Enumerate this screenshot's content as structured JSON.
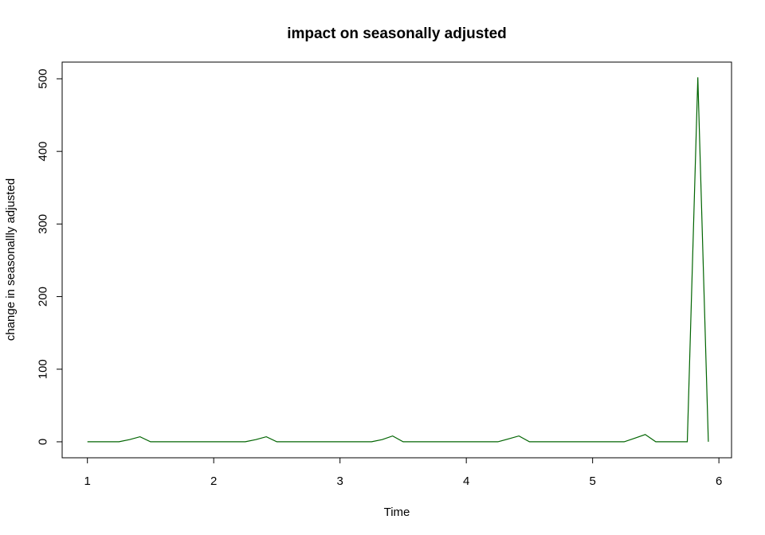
{
  "chart_data": {
    "type": "line",
    "title": "impact on seasonally adjusted",
    "xlabel": "Time",
    "ylabel": "change in seasonallly adjusted",
    "xlim": [
      0.8,
      6.1
    ],
    "ylim": [
      -22,
      523
    ],
    "xticks": [
      1,
      2,
      3,
      4,
      5,
      6
    ],
    "yticks": [
      0,
      100,
      200,
      300,
      400,
      500
    ],
    "grid": false,
    "legend": "none",
    "series": [
      {
        "color": "#006400",
        "x": [
          1.0,
          1.0833,
          1.1667,
          1.25,
          1.3333,
          1.4167,
          1.5,
          1.5833,
          1.6667,
          1.75,
          1.8333,
          1.9167,
          2.0,
          2.0833,
          2.1667,
          2.25,
          2.3333,
          2.4167,
          2.5,
          2.5833,
          2.6667,
          2.75,
          2.8333,
          2.9167,
          3.0,
          3.0833,
          3.1667,
          3.25,
          3.3333,
          3.4167,
          3.5,
          3.5833,
          3.6667,
          3.75,
          3.8333,
          3.9167,
          4.0,
          4.0833,
          4.1667,
          4.25,
          4.3333,
          4.4167,
          4.5,
          4.5833,
          4.6667,
          4.75,
          4.8333,
          4.9167,
          5.0,
          5.0833,
          5.1667,
          5.25,
          5.3333,
          5.4167,
          5.5,
          5.5833,
          5.6667,
          5.75,
          5.8333,
          5.9167
        ],
        "y": [
          0,
          0,
          0,
          0,
          3,
          7,
          0,
          0,
          0,
          0,
          0,
          0,
          0,
          0,
          0,
          0,
          3,
          7,
          0,
          0,
          0,
          0,
          0,
          0,
          0,
          0,
          0,
          0,
          3,
          8,
          0,
          0,
          0,
          0,
          0,
          0,
          0,
          0,
          0,
          0,
          4,
          8,
          0,
          0,
          0,
          0,
          0,
          0,
          0,
          0,
          0,
          0,
          5,
          10,
          0,
          0,
          0,
          0,
          502,
          0
        ]
      }
    ]
  }
}
